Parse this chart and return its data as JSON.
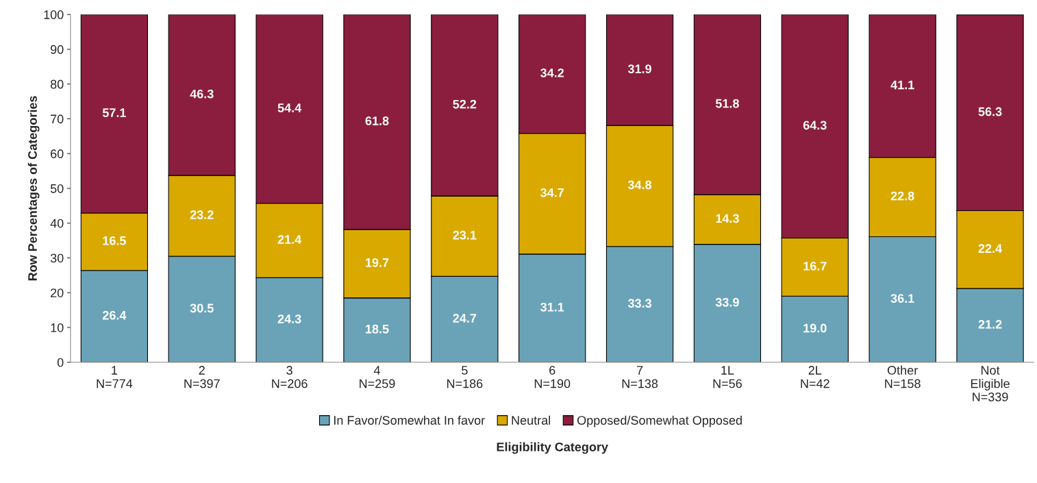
{
  "chart_data": {
    "type": "bar",
    "stacked": true,
    "xlabel": "Eligibility Category",
    "ylabel": "Row Percentages of Categories",
    "categories": [
      "1\nN=774",
      "2\nN=397",
      "3\nN=206",
      "4\nN=259",
      "5\nN=186",
      "6\nN=190",
      "7\nN=138",
      "1L\nN=56",
      "2L\nN=42",
      "Other\nN=158",
      "Not\nEligible\nN=339"
    ],
    "series": [
      {
        "name": "In Favor/Somewhat In favor",
        "color": "#6aa3b8",
        "values": [
          26.4,
          30.5,
          24.3,
          18.5,
          24.7,
          31.1,
          33.3,
          33.9,
          19.0,
          36.1,
          21.2
        ],
        "value_labels": [
          "26.4",
          "30.5",
          "24.3",
          "18.5",
          "24.7",
          "31.1",
          "33.3",
          "33.9",
          "19.0",
          "36.1",
          "21.2"
        ]
      },
      {
        "name": "Neutral",
        "color": "#d9a900",
        "values": [
          16.5,
          23.2,
          21.4,
          19.7,
          23.1,
          34.7,
          34.8,
          14.3,
          16.7,
          22.8,
          22.4
        ],
        "value_labels": [
          "16.5",
          "23.2",
          "21.4",
          "19.7",
          "23.1",
          "34.7",
          "34.8",
          "14.3",
          "16.7",
          "22.8",
          "22.4"
        ]
      },
      {
        "name": "Opposed/Somewhat Opposed",
        "color": "#8b1e3f",
        "values": [
          57.1,
          46.3,
          54.4,
          61.8,
          52.2,
          34.2,
          31.9,
          51.8,
          64.3,
          41.1,
          56.3
        ],
        "value_labels": [
          "57.1",
          "46.3",
          "54.4",
          "61.8",
          "52.2",
          "34.2",
          "31.9",
          "51.8",
          "64.3",
          "41.1",
          "56.3"
        ]
      }
    ],
    "ylim": [
      0,
      100
    ],
    "yticks": [
      0,
      10,
      20,
      30,
      40,
      50,
      60,
      70,
      80,
      90,
      100
    ],
    "grid": false,
    "legend": "bottom"
  }
}
